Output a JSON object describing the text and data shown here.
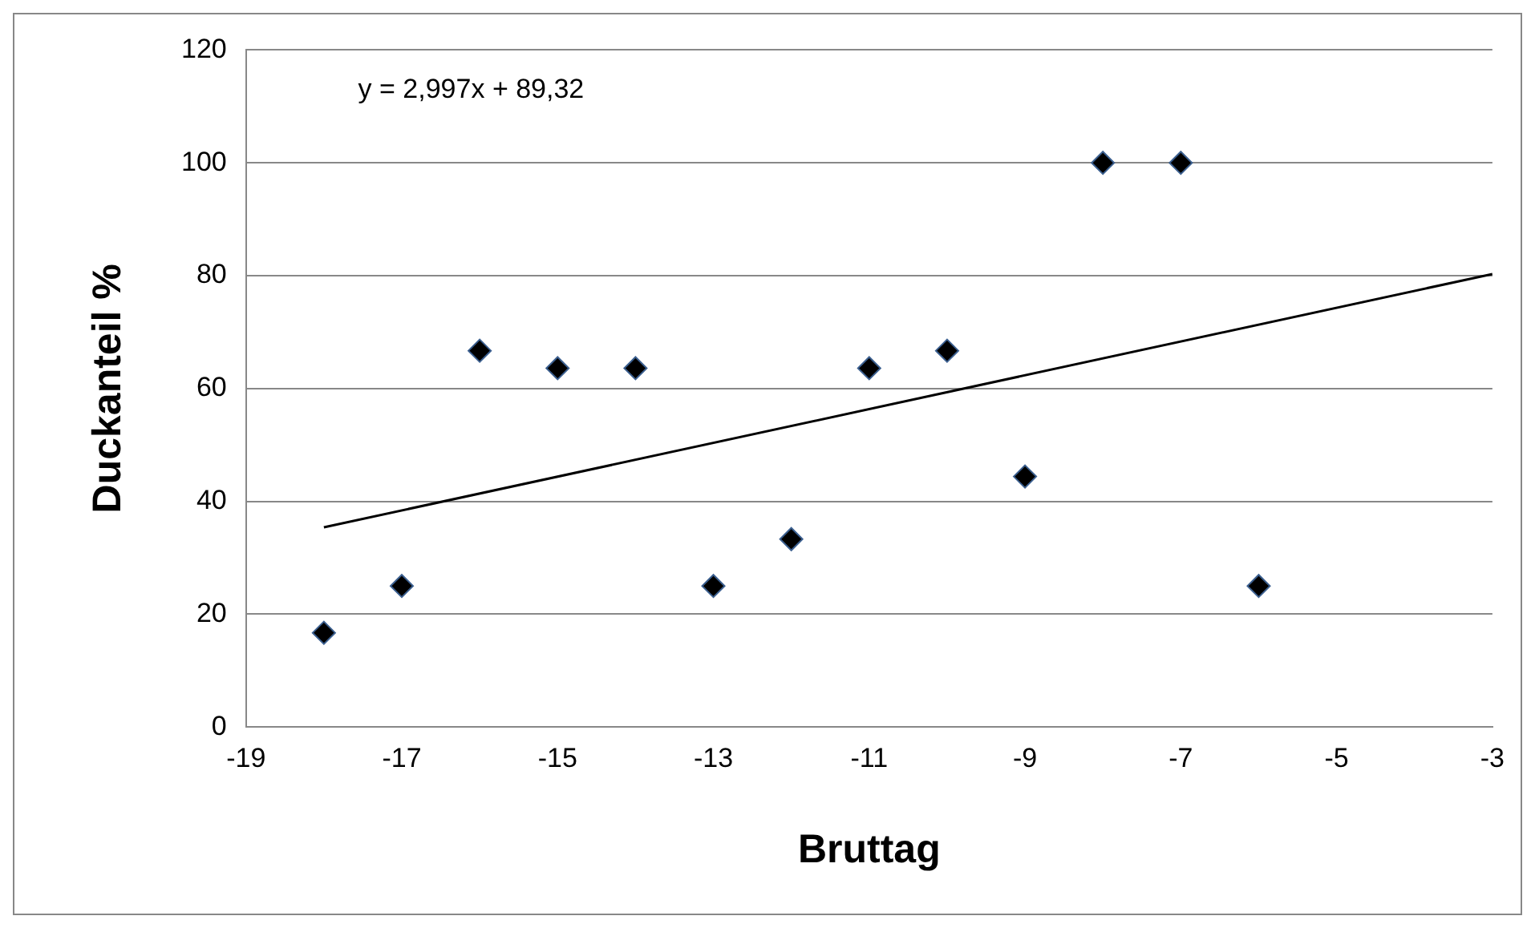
{
  "chart_data": {
    "type": "scatter",
    "xlabel": "Bruttag",
    "ylabel": "Duckanteil %",
    "annotations": [
      "y = 2,997x + 89,32"
    ],
    "x": [
      -18,
      -17,
      -16,
      -15,
      -14,
      -13,
      -12,
      -11,
      -10,
      -9,
      -8,
      -7,
      -6
    ],
    "series": [
      {
        "type": "scatter",
        "color": "#000000",
        "marker": "diamond",
        "values": [
          16.7,
          25,
          66.7,
          63.6,
          63.6,
          25,
          33.3,
          63.6,
          66.7,
          44.4,
          100,
          100,
          25
        ]
      },
      {
        "type": "line",
        "color": "#000000",
        "marker": "none",
        "x": [
          -18,
          -3
        ],
        "values": [
          35.4,
          80.3
        ]
      }
    ],
    "xlim": [
      -19,
      -3
    ],
    "xticks": [
      -19,
      -17,
      -15,
      -13,
      -11,
      -9,
      -7,
      -5,
      -3
    ],
    "ylim": [
      0,
      120
    ],
    "yticks": [
      0,
      20,
      40,
      60,
      80,
      100,
      120
    ],
    "grid": "y",
    "legend": false
  }
}
